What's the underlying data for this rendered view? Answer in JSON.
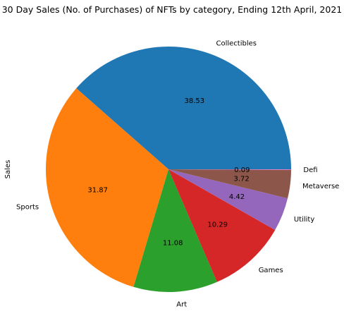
{
  "chart_data": {
    "type": "pie",
    "title": "30 Day Sales (No. of Purchases) of NFTs by category, Ending 12th April, 2021",
    "ylabel": "Sales",
    "categories": [
      "Collectibles",
      "Sports",
      "Art",
      "Games",
      "Utility",
      "Metaverse",
      "Defi"
    ],
    "values": [
      38.53,
      31.87,
      11.08,
      10.29,
      4.42,
      3.72,
      0.09
    ],
    "value_labels": [
      "38.53",
      "31.87",
      "11.08",
      "10.29",
      "4.42",
      "3.72",
      "0.09"
    ],
    "colors": [
      "#1f77b4",
      "#ff7f0e",
      "#2ca02c",
      "#d62728",
      "#9467bd",
      "#8c564b",
      "#e377c2"
    ],
    "start_angle": "3 o'clock",
    "direction": "counterclockwise"
  }
}
